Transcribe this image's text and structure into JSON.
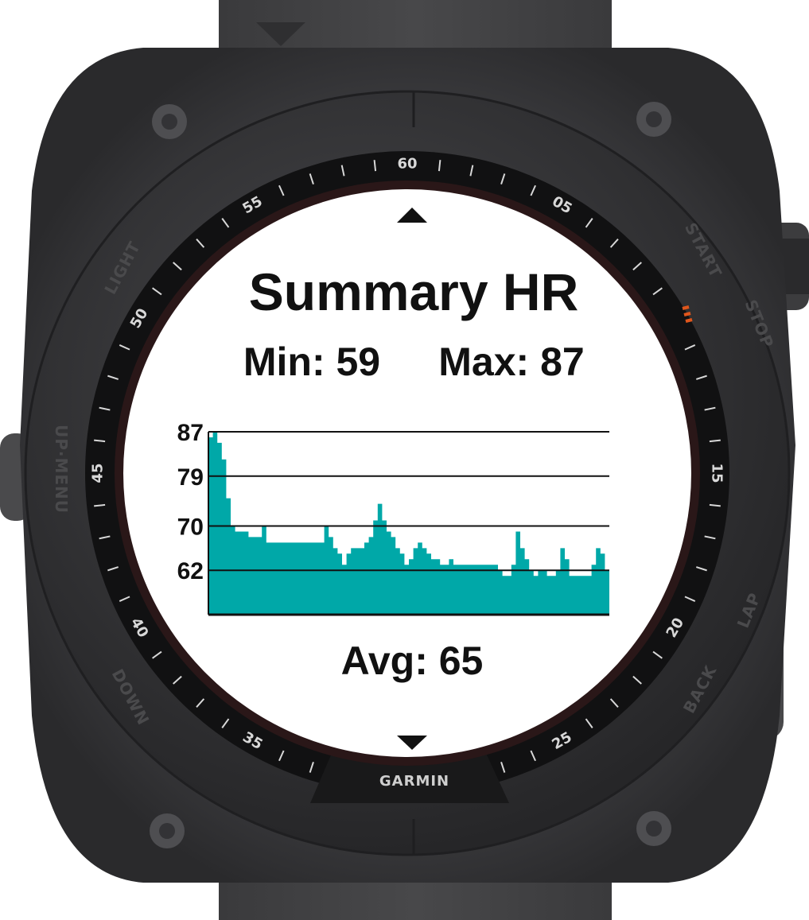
{
  "screen": {
    "title": "Summary HR",
    "min_label": "Min: 59",
    "max_label": "Max: 87",
    "avg_label": "Avg: 65",
    "scroll_up_icon": "triangle-up-icon",
    "scroll_down_icon": "triangle-down-icon"
  },
  "bezel": {
    "brand": "GARMIN",
    "minute_marks": [
      "60",
      "05",
      "15",
      "20",
      "25",
      "35",
      "40",
      "45",
      "50",
      "55"
    ]
  },
  "buttons": {
    "light": "LIGHT",
    "up_menu": "UP·MENU",
    "down": "DOWN",
    "start": "START",
    "stop": "STOP",
    "lap": "LAP",
    "back": "BACK"
  },
  "colors": {
    "chart_fill": "#00a8a8",
    "screen_bg": "#ffffff",
    "bezel": "#2c2c2e",
    "case": "#333336",
    "accent": "#e0561c"
  },
  "chart_data": {
    "type": "area",
    "title": "Summary HR",
    "ylim": [
      54,
      87
    ],
    "ytick_labels": [
      "87",
      "79",
      "70",
      "62"
    ],
    "ytick_values": [
      87,
      79,
      70,
      62
    ],
    "grid": true,
    "series": [
      {
        "values": [
          86,
          87,
          85,
          82,
          75,
          70,
          69,
          69,
          69,
          68,
          68,
          68,
          70,
          67,
          67,
          67,
          67,
          67,
          67,
          67,
          67,
          67,
          67,
          67,
          67,
          67,
          70,
          68,
          66,
          65,
          63,
          65,
          66,
          66,
          66,
          67,
          68,
          71,
          74,
          71,
          69,
          68,
          66,
          65,
          63,
          64,
          66,
          67,
          66,
          65,
          64,
          64,
          63,
          63,
          64,
          63,
          63,
          63,
          63,
          63,
          63,
          63,
          63,
          63,
          63,
          62,
          61,
          61,
          63,
          69,
          66,
          64,
          62,
          61,
          62,
          62,
          61,
          61,
          62,
          66,
          64,
          61,
          61,
          61,
          61,
          61,
          63,
          66,
          65,
          62
        ]
      }
    ]
  }
}
